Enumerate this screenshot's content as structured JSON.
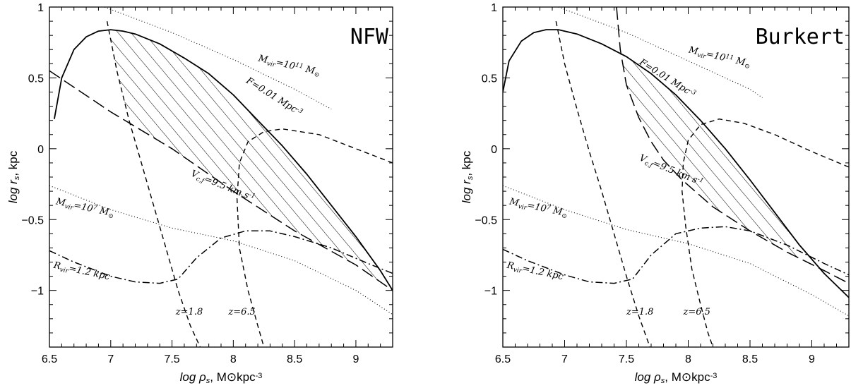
{
  "chart_data": [
    {
      "type": "line",
      "title": "NFW",
      "xlabel": "log ρs, M⊙kpc⁻³",
      "ylabel": "log rs, kpc",
      "xlim": [
        6.5,
        9.3
      ],
      "ylim": [
        -1.4,
        1.0
      ],
      "xticks": [
        "6.5",
        "7",
        "7.5",
        "8",
        "8.5",
        "9"
      ],
      "yticks": [
        "1",
        "0.5",
        "0",
        "-0.5",
        "-1"
      ],
      "series": [
        {
          "name": "F=0.01 Mpc⁻³",
          "style": "solid",
          "x": [
            6.54,
            6.6,
            6.7,
            6.8,
            6.9,
            7.0,
            7.1,
            7.2,
            7.4,
            7.6,
            7.8,
            8.0,
            8.2,
            8.4,
            8.6,
            8.8,
            9.0,
            9.2,
            9.3
          ],
          "y": [
            0.21,
            0.5,
            0.7,
            0.79,
            0.83,
            0.84,
            0.83,
            0.81,
            0.74,
            0.64,
            0.53,
            0.38,
            0.2,
            0.02,
            -0.18,
            -0.4,
            -0.62,
            -0.86,
            -1.0
          ]
        },
        {
          "name": "Vc,f=9.5 km s⁻¹",
          "style": "long-dash",
          "x": [
            6.5,
            7.0,
            7.5,
            8.0,
            8.5,
            9.0,
            9.3
          ],
          "y": [
            0.55,
            0.26,
            0.0,
            -0.3,
            -0.58,
            -0.82,
            -1.0
          ]
        },
        {
          "name": "z=1.8",
          "style": "dash",
          "x": [
            6.97,
            7.05,
            7.15,
            7.25,
            7.35,
            7.45,
            7.55,
            7.65,
            7.73
          ],
          "y": [
            0.9,
            0.55,
            0.2,
            -0.1,
            -0.4,
            -0.7,
            -1.0,
            -1.25,
            -1.4
          ]
        },
        {
          "name": "z=6.5",
          "style": "dash",
          "x": [
            9.3,
            9.0,
            8.7,
            8.4,
            8.25,
            8.12,
            8.05,
            8.03,
            8.05,
            8.12,
            8.2,
            8.25
          ],
          "y": [
            -0.1,
            0.0,
            0.1,
            0.14,
            0.12,
            0.05,
            -0.1,
            -0.35,
            -0.7,
            -1.0,
            -1.25,
            -1.4
          ]
        },
        {
          "name": "Mvir=10¹¹ M⊙",
          "style": "dotted",
          "x": [
            6.95,
            7.5,
            8.0,
            8.5,
            8.8
          ],
          "y": [
            1.0,
            0.82,
            0.63,
            0.42,
            0.28
          ]
        },
        {
          "name": "Mvir=10⁷ M⊙",
          "style": "dotted",
          "x": [
            6.5,
            7.0,
            7.5,
            8.0,
            8.5,
            9.0,
            9.3
          ],
          "y": [
            -0.26,
            -0.43,
            -0.56,
            -0.65,
            -0.79,
            -1.0,
            -1.17
          ]
        },
        {
          "name": "Rvir=1.2 kpc",
          "style": "dash-dot",
          "x": [
            6.5,
            6.7,
            7.0,
            7.2,
            7.4,
            7.55,
            7.7,
            7.9,
            8.1,
            8.3,
            8.5,
            8.8,
            9.1,
            9.3
          ],
          "y": [
            -0.72,
            -0.8,
            -0.9,
            -0.94,
            -0.95,
            -0.92,
            -0.77,
            -0.63,
            -0.58,
            -0.58,
            -0.62,
            -0.7,
            -0.81,
            -0.88
          ]
        }
      ],
      "annotations": [
        {
          "text": "F=0.01 Mpc⁻³",
          "x": 8.1,
          "y": 0.47,
          "angle": 32
        },
        {
          "text": "Vc,f=9.5 km s⁻¹",
          "x": 7.65,
          "y": -0.19,
          "angle": 22
        },
        {
          "text": "Mvir=10¹¹ M⊙",
          "x": 8.2,
          "y": 0.62,
          "angle": 13
        },
        {
          "text": "Mvir=10⁷ M⊙",
          "x": 6.55,
          "y": -0.39,
          "angle": 12
        },
        {
          "text": "Rvir=1.2 kpc",
          "x": 6.53,
          "y": -0.84,
          "angle": 12
        },
        {
          "text": "z=1.8",
          "x": 7.53,
          "y": -1.17,
          "angle": 0
        },
        {
          "text": "z=6.5",
          "x": 7.96,
          "y": -1.17,
          "angle": 0
        }
      ]
    },
    {
      "type": "line",
      "title": "Burkert",
      "xlabel": "log ρs, M⊙kpc⁻³",
      "ylabel": "log rs, kpc",
      "xlim": [
        6.5,
        9.3
      ],
      "ylim": [
        -1.4,
        1.0
      ],
      "xticks": [
        "6.5",
        "7",
        "7.5",
        "8",
        "8.5",
        "9"
      ],
      "yticks": [
        "1",
        "0.5",
        "0",
        "-0.5",
        "-1"
      ],
      "series": [
        {
          "name": "F=0.01 Mpc⁻³",
          "style": "solid",
          "x": [
            6.5,
            6.55,
            6.65,
            6.75,
            6.85,
            6.95,
            7.1,
            7.3,
            7.5,
            7.7,
            7.9,
            8.1,
            8.3,
            8.5,
            8.7,
            8.9,
            9.1,
            9.3
          ],
          "y": [
            0.4,
            0.62,
            0.76,
            0.82,
            0.84,
            0.84,
            0.81,
            0.74,
            0.65,
            0.53,
            0.38,
            0.2,
            0.0,
            -0.22,
            -0.45,
            -0.68,
            -0.88,
            -1.05
          ]
        },
        {
          "name": "Vc,f=9.5 km s⁻¹",
          "style": "long-dash",
          "x": [
            7.42,
            7.45,
            7.5,
            7.6,
            7.7,
            7.8,
            7.95,
            8.2,
            8.5,
            8.8,
            9.1,
            9.3
          ],
          "y": [
            1.0,
            0.7,
            0.45,
            0.22,
            0.05,
            -0.08,
            -0.22,
            -0.41,
            -0.58,
            -0.73,
            -0.86,
            -0.95
          ]
        },
        {
          "name": "z=1.8",
          "style": "dash",
          "x": [
            6.93,
            7.0,
            7.1,
            7.2,
            7.3,
            7.4,
            7.5,
            7.6,
            7.69
          ],
          "y": [
            0.9,
            0.6,
            0.28,
            -0.02,
            -0.3,
            -0.6,
            -0.9,
            -1.18,
            -1.4
          ]
        },
        {
          "name": "z=6.5",
          "style": "dash",
          "x": [
            9.3,
            9.0,
            8.7,
            8.45,
            8.25,
            8.1,
            8.0,
            7.96,
            7.95,
            7.98,
            8.03,
            8.1,
            8.16,
            8.2
          ],
          "y": [
            -0.13,
            -0.02,
            0.1,
            0.18,
            0.21,
            0.17,
            0.06,
            -0.1,
            -0.3,
            -0.55,
            -0.85,
            -1.1,
            -1.3,
            -1.4
          ]
        },
        {
          "name": "Mvir=10¹¹ M⊙",
          "style": "dotted",
          "x": [
            6.95,
            7.5,
            8.0,
            8.5,
            8.6
          ],
          "y": [
            1.0,
            0.82,
            0.62,
            0.42,
            0.36
          ]
        },
        {
          "name": "Mvir=10⁷ M⊙",
          "style": "dotted",
          "x": [
            6.5,
            7.0,
            7.5,
            8.0,
            8.5,
            9.0,
            9.3
          ],
          "y": [
            -0.26,
            -0.43,
            -0.57,
            -0.67,
            -0.81,
            -1.03,
            -1.18
          ]
        },
        {
          "name": "Rvir=1.2 kpc",
          "style": "dash-dot",
          "x": [
            6.5,
            6.7,
            7.0,
            7.2,
            7.4,
            7.55,
            7.7,
            7.9,
            8.1,
            8.3,
            8.5,
            8.8,
            9.1,
            9.3
          ],
          "y": [
            -0.71,
            -0.79,
            -0.89,
            -0.94,
            -0.95,
            -0.92,
            -0.75,
            -0.6,
            -0.56,
            -0.55,
            -0.58,
            -0.68,
            -0.81,
            -0.89
          ]
        }
      ],
      "annotations": [
        {
          "text": "F=0.01 Mpc⁻³",
          "x": 7.6,
          "y": 0.6,
          "angle": 32
        },
        {
          "text": "Vc,f=9.5 km s⁻¹",
          "x": 7.6,
          "y": -0.08,
          "angle": 22
        },
        {
          "text": "Mvir=10¹¹ M⊙",
          "x": 8.0,
          "y": 0.68,
          "angle": 13
        },
        {
          "text": "Mvir=10⁷ M⊙",
          "x": 6.55,
          "y": -0.39,
          "angle": 12
        },
        {
          "text": "Rvir=1.2 kpc",
          "x": 6.53,
          "y": -0.84,
          "angle": 12
        },
        {
          "text": "z=1.8",
          "x": 7.5,
          "y": -1.17,
          "angle": 0
        },
        {
          "text": "z=6.5",
          "x": 7.96,
          "y": -1.17,
          "angle": 0
        }
      ]
    }
  ]
}
